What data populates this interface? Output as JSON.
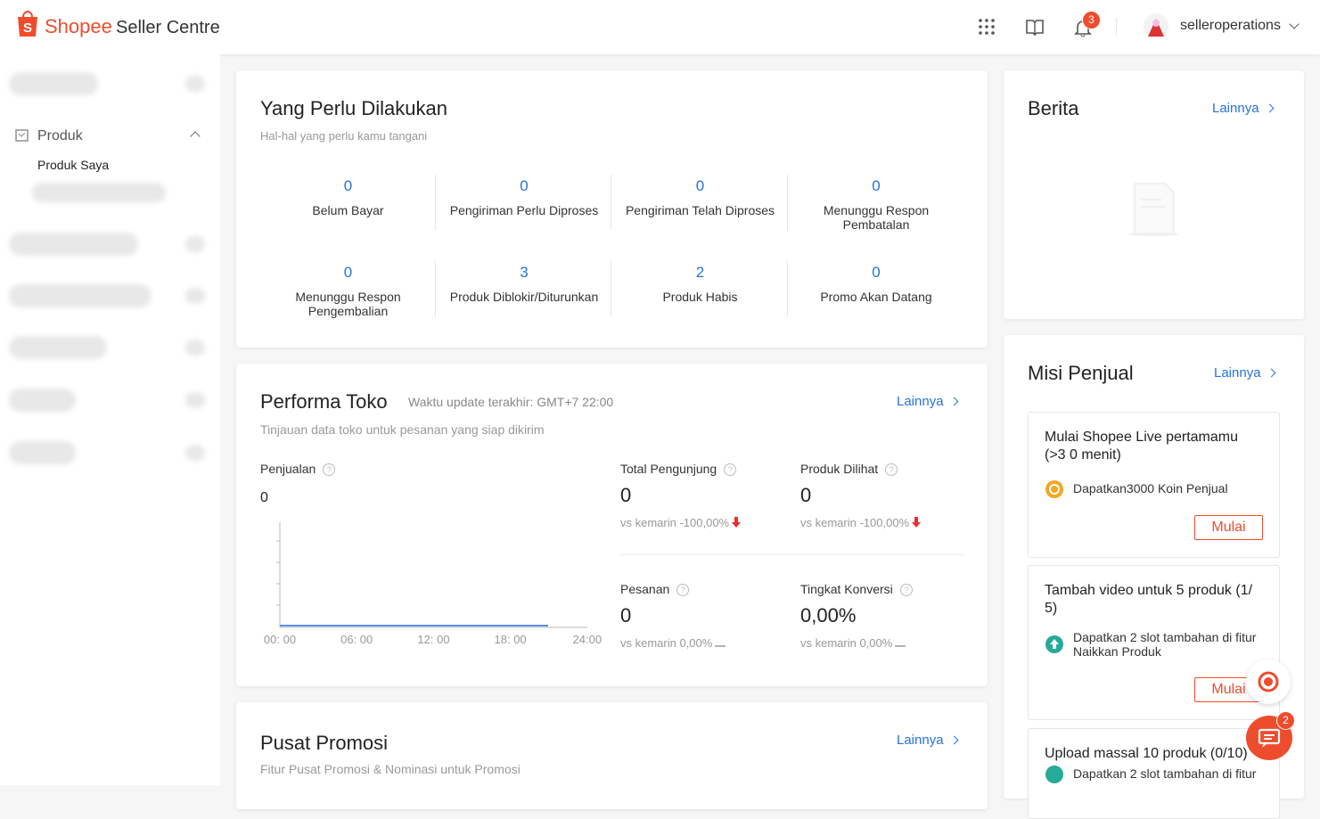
{
  "header": {
    "brand": "Shopee",
    "product": "Seller Centre",
    "notification_count": 3,
    "username": "selleroperations"
  },
  "sidebar": {
    "section": "Produk",
    "items": [
      "Produk Saya"
    ]
  },
  "todo": {
    "title": "Yang Perlu Dilakukan",
    "subtitle": "Hal-hal yang perlu kamu tangani",
    "items": [
      {
        "value": 0,
        "label": "Belum Bayar"
      },
      {
        "value": 0,
        "label": "Pengiriman Perlu Diproses"
      },
      {
        "value": 0,
        "label": "Pengiriman Telah Diproses"
      },
      {
        "value": 0,
        "label": "Menunggu Respon Pembatalan"
      },
      {
        "value": 0,
        "label": "Menunggu Respon Pengembalian"
      },
      {
        "value": 3,
        "label": "Produk Diblokir/Diturunkan"
      },
      {
        "value": 2,
        "label": "Produk Habis"
      },
      {
        "value": 0,
        "label": "Promo Akan Datang"
      }
    ]
  },
  "performance": {
    "title": "Performa Toko",
    "updated": "Waktu update terakhir: GMT+7 22:00",
    "more": "Lainnya",
    "subtitle": "Tinjauan data toko untuk pesanan yang siap dikirim",
    "sales_label": "Penjualan",
    "sales_value": 0,
    "time_labels": [
      "00: 00",
      "06: 00",
      "12: 00",
      "18: 00",
      "24:00"
    ],
    "metrics": [
      {
        "label": "Total Pengunjung",
        "value": 0,
        "compare": "vs kemarin -100,00%",
        "trend": "down"
      },
      {
        "label": "Produk Dilihat",
        "value": 0,
        "compare": "vs kemarin -100,00%",
        "trend": "down"
      },
      {
        "label": "Pesanan",
        "value": 0,
        "compare": "vs kemarin 0,00%",
        "trend": "flat"
      },
      {
        "label": "Tingkat Konversi",
        "value": "0,00%",
        "compare": "vs kemarin 0,00%",
        "trend": "flat"
      }
    ]
  },
  "promo": {
    "title": "Pusat Promosi",
    "more": "Lainnya",
    "subtitle": "Fitur Pusat Promosi & Nominasi untuk Promosi"
  },
  "news": {
    "title": "Berita",
    "more": "Lainnya"
  },
  "missions": {
    "title": "Misi Penjual",
    "more": "Lainnya",
    "items": [
      {
        "title": "Mulai Shopee Live pertamamu (>3 0 menit)",
        "reward": "Dapatkan3000 Koin Penjual",
        "button": "Mulai"
      },
      {
        "title": "Tambah video untuk 5 produk (1/ 5)",
        "reward": "Dapatkan 2 slot tambahan di fitur Naikkan Produk",
        "button": "Mulai"
      },
      {
        "title": "Upload massal 10 produk (0/10)",
        "reward": "Dapatkan 2 slot tambahan di fitur"
      }
    ]
  },
  "chat": {
    "unread": 2
  }
}
